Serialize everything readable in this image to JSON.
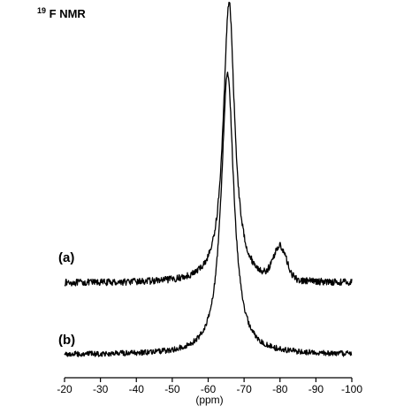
{
  "chart_data": {
    "type": "line",
    "title_sup": "19",
    "title_main": "F NMR",
    "xlabel": "(ppm)",
    "xlim": [
      -20,
      -100
    ],
    "x_reversed": true,
    "x_ticks": [
      -20,
      -30,
      -40,
      -50,
      -60,
      -70,
      -80,
      -90,
      -100
    ],
    "x_tick_labels": [
      "-20",
      "-30",
      "-40",
      "-50",
      "-60",
      "-70",
      "-80",
      "-90",
      "-100"
    ],
    "y_axis_shown": false,
    "grid": false,
    "series": [
      {
        "name": "(a)",
        "baseline": 0.0,
        "noise": 0.012,
        "peaks": [
          {
            "center_ppm": -65.8,
            "height": 1.0,
            "width_ppm": 1.9,
            "shape": "lorentzian"
          },
          {
            "center_ppm": -80.0,
            "height": 0.115,
            "width_ppm": 1.8,
            "shape": "gaussian"
          }
        ]
      },
      {
        "name": "(b)",
        "baseline": 0.0,
        "noise": 0.01,
        "peaks": [
          {
            "center_ppm": -65.4,
            "height": 1.0,
            "width_ppm": 2.1,
            "shape": "lorentzian"
          }
        ]
      }
    ]
  }
}
